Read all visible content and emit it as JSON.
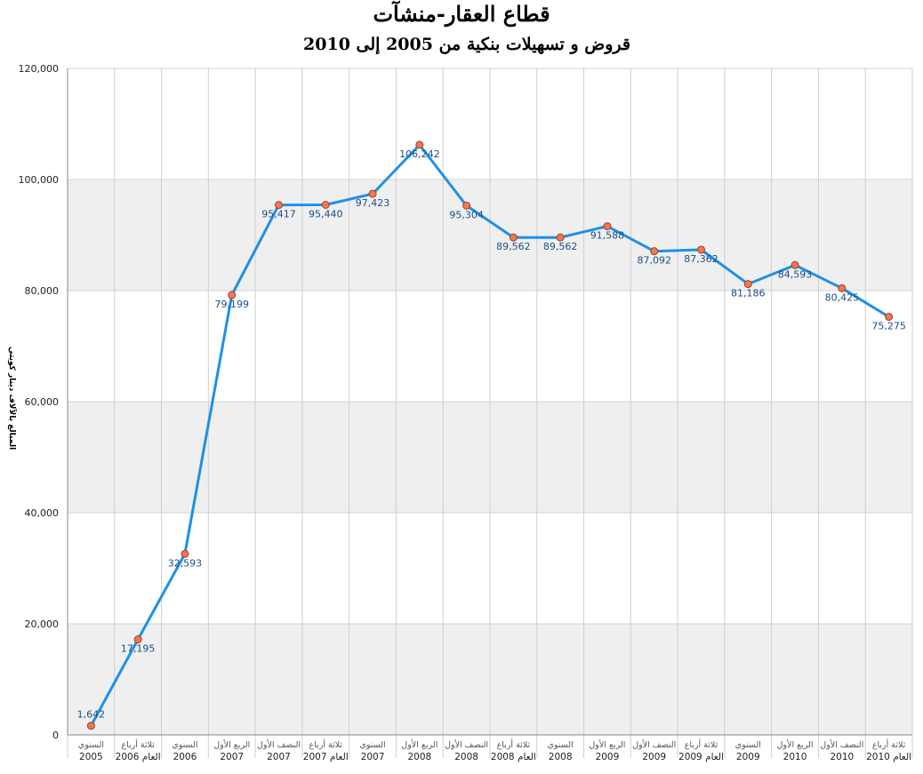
{
  "chart_data": {
    "type": "line",
    "title": "قطاع العقار-منشآت",
    "subtitle": "قروض و تسهيلات بنكية من 2005 إلى 2010",
    "xlabel": "",
    "ylabel": "المبالغ بالآلاف دينار كويتي",
    "ylim": [
      0,
      120000
    ],
    "yticks": [
      "0",
      "20,000",
      "40,000",
      "60,000",
      "80,000",
      "100,000",
      "120,000"
    ],
    "grid": true,
    "legend": "none",
    "line_color": "#1e90e8",
    "marker_color": "#f07850",
    "band_color": "#efefef",
    "categories": [
      {
        "period": "السنوي",
        "year": "2005"
      },
      {
        "period": "ثلاثة أرباع",
        "year": "العام 2006"
      },
      {
        "period": "السنوي",
        "year": "2006"
      },
      {
        "period": "الربع الأول",
        "year": "2007"
      },
      {
        "period": "النصف الأول",
        "year": "2007"
      },
      {
        "period": "ثلاثة أرباع",
        "year": "العام 2007"
      },
      {
        "period": "السنوي",
        "year": "2007"
      },
      {
        "period": "الربع الأول",
        "year": "2008"
      },
      {
        "period": "النصف الأول",
        "year": "2008"
      },
      {
        "period": "ثلاثة أرباع",
        "year": "العام 2008"
      },
      {
        "period": "السنوي",
        "year": "2008"
      },
      {
        "period": "الربع الأول",
        "year": "2009"
      },
      {
        "period": "النصف الأول",
        "year": "2009"
      },
      {
        "period": "ثلاثة أرباع",
        "year": "العام 2009"
      },
      {
        "period": "السنوي",
        "year": "2009"
      },
      {
        "period": "الربع الأول",
        "year": "2010"
      },
      {
        "period": "النصف الأول",
        "year": "2010"
      },
      {
        "period": "ثلاثة أرباع",
        "year": "العام 2010"
      }
    ],
    "values": [
      1642,
      17195,
      32593,
      79199,
      95417,
      95440,
      97423,
      106242,
      95304,
      89562,
      89562,
      91588,
      87092,
      87362,
      81186,
      84593,
      80425,
      75275
    ],
    "data_labels": [
      "1,642",
      "17,195",
      "32,593",
      "79,199",
      "95,417",
      "95,440",
      "97,423",
      "106,242",
      "95,304",
      "89,562",
      "89,562",
      "91,588",
      "87,092",
      "87,362",
      "81,186",
      "84,593",
      "80,425",
      "75,275"
    ]
  }
}
